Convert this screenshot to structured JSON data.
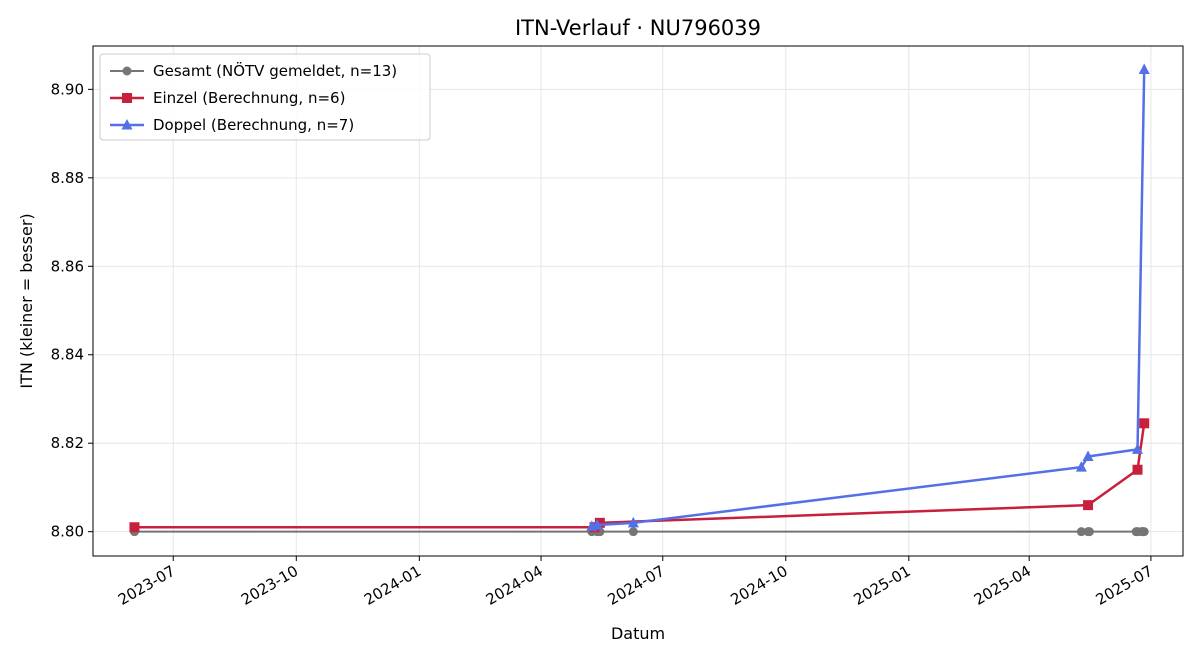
{
  "chart_data": {
    "type": "line",
    "title": "ITN-Verlauf · NU796039",
    "xlabel": "Datum",
    "ylabel": "ITN  (kleiner = besser)",
    "x_type": "date",
    "xlim": [
      "2023-05-02",
      "2025-07-25"
    ],
    "ylim": [
      8.7945,
      8.9098
    ],
    "x_ticks": [
      "2023-07-01",
      "2023-10-01",
      "2024-01-01",
      "2024-04-01",
      "2024-07-01",
      "2024-10-01",
      "2025-01-01",
      "2025-04-01",
      "2025-07-01"
    ],
    "x_tick_labels": [
      "2023-07",
      "2023-10",
      "2024-01",
      "2024-04",
      "2024-07",
      "2024-10",
      "2025-01",
      "2025-04",
      "2025-07"
    ],
    "y_ticks": [
      8.8,
      8.82,
      8.84,
      8.86,
      8.88,
      8.9
    ],
    "y_tick_labels": [
      "8.80",
      "8.82",
      "8.84",
      "8.86",
      "8.88",
      "8.90"
    ],
    "grid": true,
    "legend_position": "top-left",
    "series": [
      {
        "name": "Gesamt (NÖTV gemeldet, n=13)",
        "color": "#555555",
        "marker": "circle",
        "points": [
          {
            "x": "2023-06-02",
            "y": 8.8
          },
          {
            "x": "2024-05-09",
            "y": 8.8
          },
          {
            "x": "2024-05-13",
            "y": 8.8
          },
          {
            "x": "2024-05-15",
            "y": 8.8
          },
          {
            "x": "2024-06-09",
            "y": 8.8
          },
          {
            "x": "2025-05-10",
            "y": 8.8
          },
          {
            "x": "2025-05-15",
            "y": 8.8
          },
          {
            "x": "2025-05-16",
            "y": 8.8
          },
          {
            "x": "2025-06-20",
            "y": 8.8
          },
          {
            "x": "2025-06-21",
            "y": 8.8
          },
          {
            "x": "2025-06-24",
            "y": 8.8
          },
          {
            "x": "2025-06-25",
            "y": 8.8
          },
          {
            "x": "2025-06-26",
            "y": 8.8
          }
        ]
      },
      {
        "name": "Einzel (Berechnung, n=6)",
        "color": "#c8203c",
        "marker": "square",
        "points": [
          {
            "x": "2023-06-02",
            "y": 8.801
          },
          {
            "x": "2024-05-11",
            "y": 8.801
          },
          {
            "x": "2024-05-15",
            "y": 8.802
          },
          {
            "x": "2025-05-15",
            "y": 8.806
          },
          {
            "x": "2025-06-21",
            "y": 8.814
          },
          {
            "x": "2025-06-26",
            "y": 8.8245
          }
        ]
      },
      {
        "name": "Doppel (Berechnung, n=7)",
        "color": "#5370e8",
        "marker": "triangle",
        "points": [
          {
            "x": "2024-05-09",
            "y": 8.8012
          },
          {
            "x": "2024-05-13",
            "y": 8.8015
          },
          {
            "x": "2024-06-09",
            "y": 8.802
          },
          {
            "x": "2025-05-10",
            "y": 8.8146
          },
          {
            "x": "2025-05-15",
            "y": 8.817
          },
          {
            "x": "2025-06-21",
            "y": 8.8186
          },
          {
            "x": "2025-06-26",
            "y": 8.9045
          }
        ]
      }
    ]
  }
}
